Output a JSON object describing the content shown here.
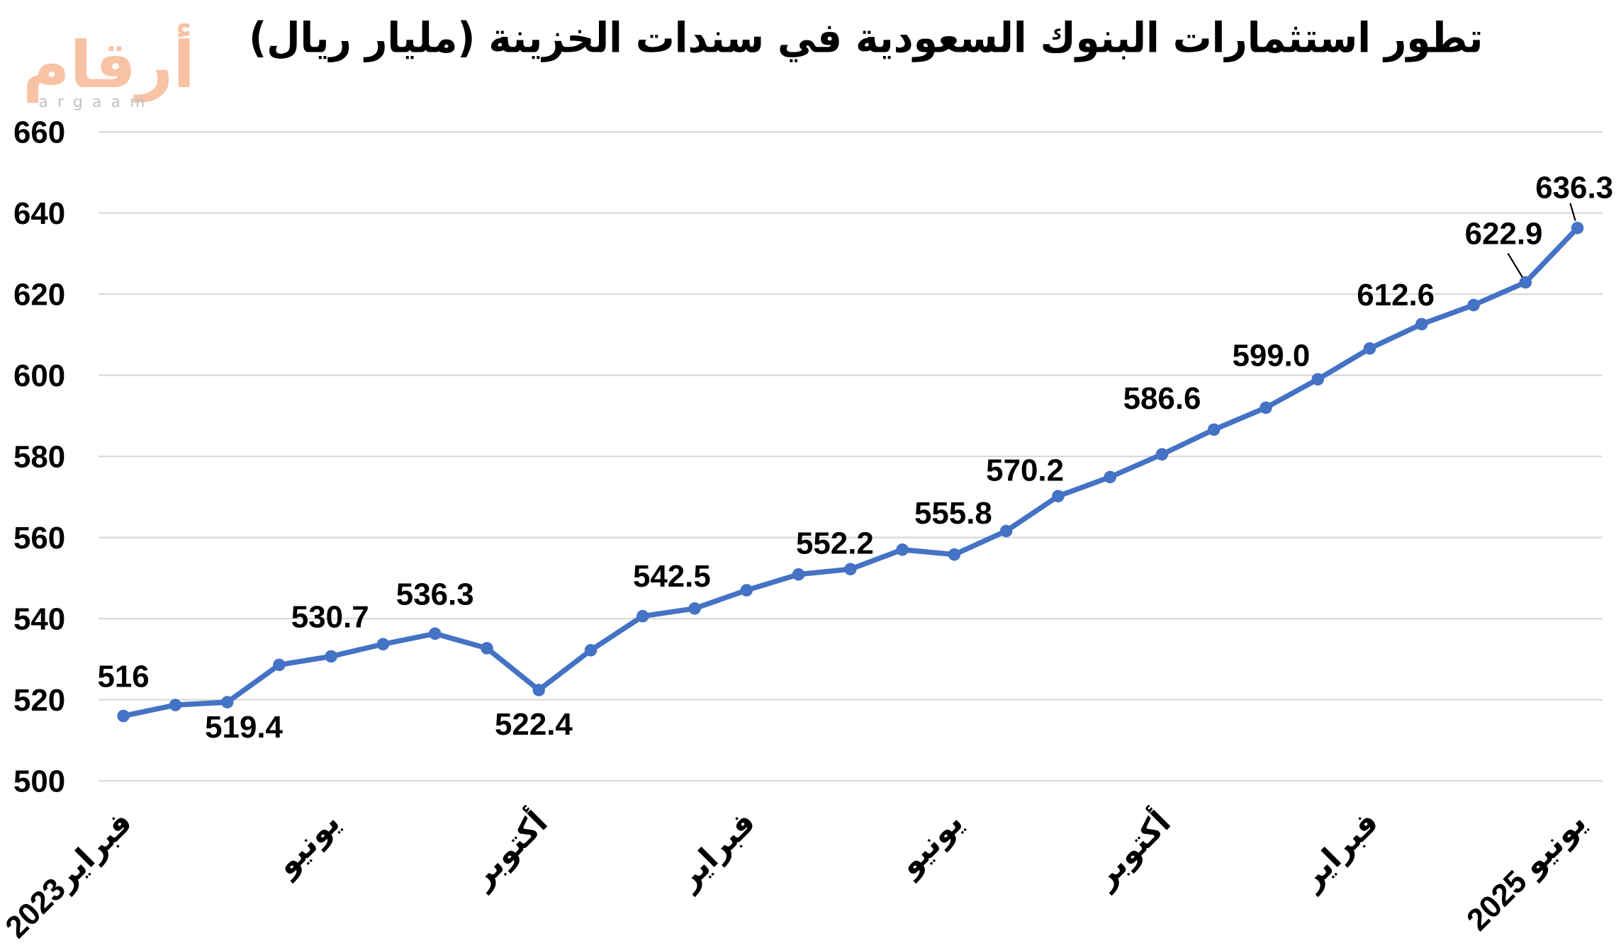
{
  "logo": {
    "arabic": "أرقام",
    "latin": "argaam",
    "color": "#F3A06E"
  },
  "chart_data": {
    "type": "line",
    "title": "تطور استثمارات البنوك السعودية في سندات الخزينة (مليار ريال)",
    "xlabel": "",
    "ylabel": "",
    "categories": [
      "فبراير2023",
      "",
      "",
      "",
      "يونيو",
      "",
      "",
      "",
      "أكتوبر",
      "",
      "",
      "",
      "فبراير",
      "",
      "",
      "",
      "يونيو",
      "",
      "",
      "",
      "أكتوبر",
      "",
      "",
      "",
      "فبراير",
      "",
      "",
      "",
      "يونيو 2025"
    ],
    "series": [
      {
        "values": [
          516,
          518.7,
          519.4,
          528.6,
          530.7,
          533.7,
          536.3,
          532.7,
          522.4,
          532.2,
          540.6,
          542.5,
          547.0,
          550.9,
          552.2,
          557.0,
          555.8,
          561.6,
          570.2,
          574.9,
          580.5,
          586.6,
          592.0,
          599.0,
          606.6,
          612.6,
          617.3,
          622.9,
          636.3
        ],
        "color": "#4472C4"
      }
    ],
    "data_labels": [
      "516",
      null,
      "519.4",
      null,
      "530.7",
      null,
      "536.3",
      null,
      "522.4",
      null,
      null,
      "542.5",
      null,
      null,
      "552.2",
      null,
      "555.8",
      null,
      "570.2",
      null,
      null,
      "586.6",
      null,
      "599.0",
      null,
      "612.6",
      null,
      "622.9",
      "636.3"
    ],
    "ylim": [
      500,
      660
    ],
    "yticks": [
      500,
      520,
      540,
      560,
      580,
      600,
      620,
      640,
      660
    ],
    "grid": true,
    "grid_color": "#D9D9D9"
  }
}
